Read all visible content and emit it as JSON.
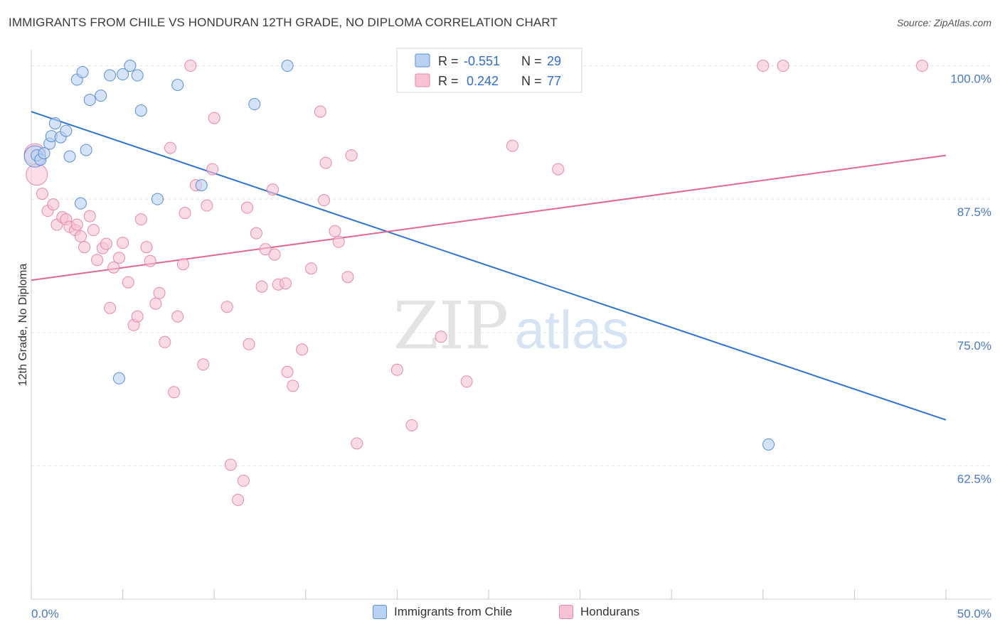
{
  "header": {
    "title": "IMMIGRANTS FROM CHILE VS HONDURAN 12TH GRADE, NO DIPLOMA CORRELATION CHART",
    "source": "Source: ZipAtlas.com"
  },
  "watermark": {
    "zip": "ZIP",
    "atlas": "atlas"
  },
  "legend": {
    "rows": [
      {
        "r_label": "R =",
        "r_value": "-0.551",
        "n_label": "N =",
        "n_value": "29"
      },
      {
        "r_label": "R =",
        "r_value": "0.242",
        "n_label": "N =",
        "n_value": "77"
      }
    ]
  },
  "colors": {
    "blue_fill": "#b9d1f3",
    "blue_stroke": "#5b8fd6",
    "blue_line": "#2f72d2",
    "pink_fill": "#f7c3d3",
    "pink_stroke": "#e58aa6",
    "pink_line": "#e0688f",
    "axis_text": "#4a78c4",
    "value_text": "#2f6bd0"
  },
  "chart_data": {
    "type": "scatter",
    "ylabel": "12th Grade, No Diploma",
    "xlim": [
      0,
      50
    ],
    "ylim": [
      50,
      101.5
    ],
    "x_tick_labels": {
      "min": "0.0%",
      "max": "50.0%"
    },
    "y_ticks": [
      {
        "value": 100,
        "label": "100.0%"
      },
      {
        "value": 87.5,
        "label": "87.5%"
      },
      {
        "value": 75,
        "label": "75.0%"
      },
      {
        "value": 62.5,
        "label": "62.5%"
      }
    ],
    "grid": true,
    "legend_position": "top-center",
    "series": [
      {
        "name": "Immigrants from Chile",
        "trend": {
          "x": [
            0,
            50
          ],
          "y": [
            95.7,
            66.8
          ]
        },
        "points": [
          [
            0.3,
            91.6
          ],
          [
            0.5,
            91.2
          ],
          [
            0.7,
            91.8
          ],
          [
            1.0,
            92.7
          ],
          [
            1.1,
            93.4
          ],
          [
            1.3,
            94.6
          ],
          [
            1.6,
            93.3
          ],
          [
            1.9,
            93.9
          ],
          [
            2.1,
            91.5
          ],
          [
            2.5,
            98.7
          ],
          [
            2.7,
            87.1
          ],
          [
            2.8,
            99.4
          ],
          [
            3.0,
            92.1
          ],
          [
            3.2,
            96.8
          ],
          [
            3.8,
            97.2
          ],
          [
            4.3,
            99.1
          ],
          [
            4.8,
            70.7
          ],
          [
            5.0,
            99.2
          ],
          [
            5.4,
            100.0
          ],
          [
            5.8,
            99.1
          ],
          [
            6.0,
            95.8
          ],
          [
            6.9,
            87.5
          ],
          [
            8.0,
            98.2
          ],
          [
            9.3,
            88.8
          ],
          [
            12.2,
            96.4
          ],
          [
            14.0,
            100.0
          ],
          [
            40.3,
            64.5
          ]
        ],
        "big_points": [
          [
            0.2,
            91.5
          ]
        ]
      },
      {
        "name": "Hondurans",
        "trend": {
          "x": [
            0,
            50
          ],
          "y": [
            79.9,
            91.6
          ]
        },
        "points": [
          [
            0.6,
            88.0
          ],
          [
            0.9,
            86.4
          ],
          [
            1.2,
            87.0
          ],
          [
            1.4,
            85.1
          ],
          [
            1.7,
            85.8
          ],
          [
            1.9,
            85.6
          ],
          [
            2.1,
            84.9
          ],
          [
            2.4,
            84.6
          ],
          [
            2.5,
            85.1
          ],
          [
            2.7,
            84.0
          ],
          [
            2.9,
            83.0
          ],
          [
            3.2,
            85.9
          ],
          [
            3.4,
            84.6
          ],
          [
            3.6,
            81.8
          ],
          [
            3.9,
            82.9
          ],
          [
            4.1,
            83.3
          ],
          [
            4.3,
            77.3
          ],
          [
            4.5,
            81.1
          ],
          [
            4.8,
            82.0
          ],
          [
            5.0,
            83.4
          ],
          [
            5.3,
            79.7
          ],
          [
            5.6,
            75.7
          ],
          [
            5.8,
            76.5
          ],
          [
            6.0,
            85.6
          ],
          [
            6.3,
            83.0
          ],
          [
            6.5,
            81.7
          ],
          [
            6.8,
            77.7
          ],
          [
            7.0,
            78.7
          ],
          [
            7.3,
            74.1
          ],
          [
            7.6,
            92.3
          ],
          [
            7.8,
            69.4
          ],
          [
            8.0,
            76.5
          ],
          [
            8.3,
            81.4
          ],
          [
            8.4,
            86.2
          ],
          [
            8.7,
            100.0
          ],
          [
            9.0,
            88.8
          ],
          [
            9.4,
            72.0
          ],
          [
            9.6,
            86.9
          ],
          [
            9.9,
            90.3
          ],
          [
            10.0,
            95.1
          ],
          [
            10.7,
            77.4
          ],
          [
            10.9,
            62.6
          ],
          [
            11.3,
            59.3
          ],
          [
            11.6,
            61.1
          ],
          [
            11.8,
            86.7
          ],
          [
            11.9,
            73.9
          ],
          [
            12.3,
            84.3
          ],
          [
            12.6,
            79.3
          ],
          [
            12.8,
            82.8
          ],
          [
            13.2,
            88.4
          ],
          [
            13.3,
            82.3
          ],
          [
            13.5,
            79.5
          ],
          [
            13.9,
            79.6
          ],
          [
            14.0,
            71.3
          ],
          [
            14.3,
            70.0
          ],
          [
            14.8,
            73.4
          ],
          [
            15.3,
            81.0
          ],
          [
            15.8,
            95.7
          ],
          [
            16.0,
            87.4
          ],
          [
            16.1,
            90.9
          ],
          [
            16.6,
            84.5
          ],
          [
            16.8,
            83.5
          ],
          [
            17.3,
            80.2
          ],
          [
            17.5,
            91.6
          ],
          [
            17.8,
            64.6
          ],
          [
            20.0,
            71.5
          ],
          [
            20.8,
            66.3
          ],
          [
            22.4,
            74.6
          ],
          [
            23.8,
            70.4
          ],
          [
            25.2,
            100.0
          ],
          [
            26.3,
            92.5
          ],
          [
            28.7,
            100.0
          ],
          [
            28.8,
            90.3
          ],
          [
            40.0,
            100.0
          ],
          [
            41.1,
            100.0
          ],
          [
            48.7,
            100.0
          ]
        ],
        "big_points": [
          [
            0.2,
            91.7
          ],
          [
            0.3,
            89.8
          ]
        ]
      }
    ]
  }
}
